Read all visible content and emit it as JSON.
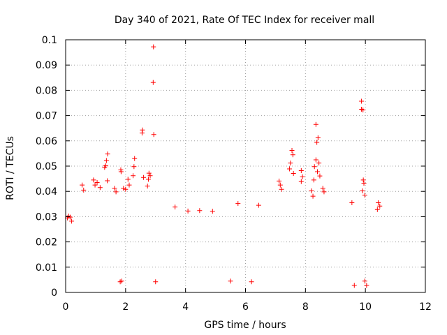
{
  "chart_data": {
    "type": "scatter",
    "title": "Day 340 of 2021, Rate Of TEC Index for receiver mall",
    "xlabel": "GPS time / hours",
    "ylabel": "ROTI / TECUs",
    "xlim": [
      0,
      12
    ],
    "ylim": [
      0,
      0.1
    ],
    "x_ticks": [
      "0",
      "2",
      "4",
      "6",
      "8",
      "10",
      "12"
    ],
    "y_ticks": [
      "0",
      "0.01",
      "0.02",
      "0.03",
      "0.04",
      "0.05",
      "0.06",
      "0.07",
      "0.08",
      "0.09",
      "0.1"
    ],
    "grid": true,
    "marker": "+",
    "color": "#ff0000",
    "series": [
      {
        "name": "ROTI",
        "points": [
          [
            2.93,
            0.0972
          ],
          [
            2.92,
            0.0831
          ],
          [
            9.87,
            0.0757
          ],
          [
            9.87,
            0.0725
          ],
          [
            9.92,
            0.0722
          ],
          [
            2.56,
            0.0643
          ],
          [
            2.55,
            0.0631
          ],
          [
            2.94,
            0.0625
          ],
          [
            8.35,
            0.0665
          ],
          [
            8.42,
            0.0612
          ],
          [
            8.38,
            0.0594
          ],
          [
            1.4,
            0.0548
          ],
          [
            1.36,
            0.0522
          ],
          [
            1.34,
            0.0501
          ],
          [
            1.3,
            0.0495
          ],
          [
            1.39,
            0.0442
          ],
          [
            2.3,
            0.053
          ],
          [
            2.28,
            0.0498
          ],
          [
            2.25,
            0.0462
          ],
          [
            1.84,
            0.0485
          ],
          [
            1.85,
            0.0478
          ],
          [
            1.93,
            0.0412
          ],
          [
            2.78,
            0.0472
          ],
          [
            2.82,
            0.0462
          ],
          [
            2.76,
            0.0448
          ],
          [
            2.6,
            0.0455
          ],
          [
            2.73,
            0.0421
          ],
          [
            7.55,
            0.0562
          ],
          [
            7.58,
            0.0545
          ],
          [
            7.5,
            0.0512
          ],
          [
            7.47,
            0.0489
          ],
          [
            7.6,
            0.0471
          ],
          [
            7.86,
            0.0482
          ],
          [
            7.9,
            0.0458
          ],
          [
            7.86,
            0.0439
          ],
          [
            8.35,
            0.0525
          ],
          [
            8.45,
            0.0512
          ],
          [
            8.3,
            0.0498
          ],
          [
            8.4,
            0.0478
          ],
          [
            8.48,
            0.0461
          ],
          [
            8.28,
            0.0445
          ],
          [
            7.12,
            0.0441
          ],
          [
            7.16,
            0.0425
          ],
          [
            7.2,
            0.0408
          ],
          [
            9.93,
            0.0445
          ],
          [
            9.95,
            0.0432
          ],
          [
            9.9,
            0.0402
          ],
          [
            9.98,
            0.0385
          ],
          [
            8.58,
            0.0412
          ],
          [
            8.62,
            0.0398
          ],
          [
            8.2,
            0.0402
          ],
          [
            8.25,
            0.0381
          ],
          [
            0.55,
            0.0425
          ],
          [
            0.6,
            0.0405
          ],
          [
            0.93,
            0.0445
          ],
          [
            0.98,
            0.0425
          ],
          [
            1.05,
            0.0435
          ],
          [
            1.15,
            0.0415
          ],
          [
            2.08,
            0.0448
          ],
          [
            2.12,
            0.0425
          ],
          [
            2.0,
            0.0408
          ],
          [
            1.63,
            0.0412
          ],
          [
            1.68,
            0.0398
          ],
          [
            9.55,
            0.0355
          ],
          [
            5.75,
            0.0352
          ],
          [
            10.43,
            0.0355
          ],
          [
            10.48,
            0.0342
          ],
          [
            10.4,
            0.0328
          ],
          [
            6.44,
            0.0345
          ],
          [
            4.08,
            0.0322
          ],
          [
            4.9,
            0.0321
          ],
          [
            3.65,
            0.0338
          ],
          [
            4.47,
            0.0324
          ],
          [
            0.06,
            0.0295
          ],
          [
            0.1,
            0.0302
          ],
          [
            0.15,
            0.0298
          ],
          [
            0.2,
            0.0282
          ],
          [
            9.63,
            0.0028
          ],
          [
            10.04,
            0.0028
          ],
          [
            9.98,
            0.0045
          ],
          [
            1.87,
            0.0045
          ],
          [
            1.82,
            0.0042
          ],
          [
            3.0,
            0.0042
          ],
          [
            5.5,
            0.0045
          ],
          [
            6.2,
            0.0042
          ]
        ]
      }
    ]
  }
}
